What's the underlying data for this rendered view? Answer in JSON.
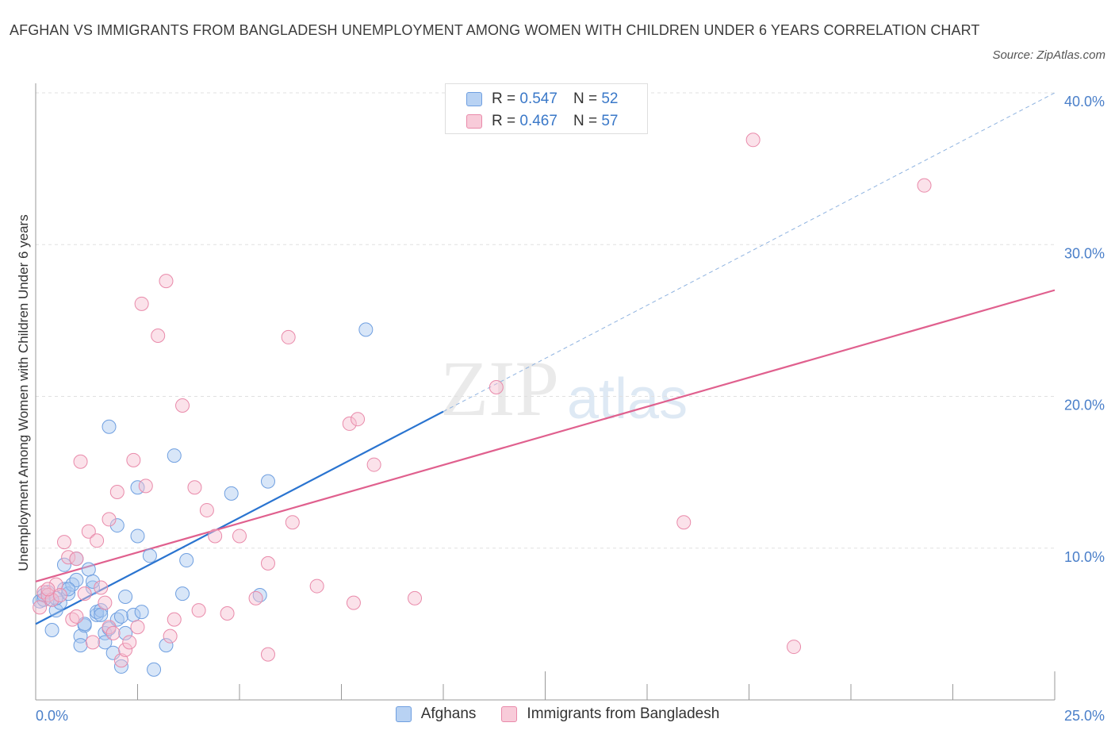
{
  "title": "AFGHAN VS IMMIGRANTS FROM BANGLADESH UNEMPLOYMENT AMONG WOMEN WITH CHILDREN UNDER 6 YEARS CORRELATION CHART",
  "source": "Source: ZipAtlas.com",
  "watermark": {
    "zip": "ZIP",
    "atlas": "atlas"
  },
  "colors": {
    "afghans_fill": "#a9c8f0",
    "afghans_stroke": "#6f9fe0",
    "afghans_line": "#2a74d0",
    "bangladesh_fill": "#f6bfd0",
    "bangladesh_stroke": "#e98aaa",
    "bangladesh_line": "#e0608e",
    "grid": "#e0e0e0",
    "tick_label": "#4a7fc9"
  },
  "legend_top": [
    {
      "r_label": "R = ",
      "r_value": "0.547",
      "n_label": "N = ",
      "n_value": "52"
    },
    {
      "r_label": "R = ",
      "r_value": "0.467",
      "n_label": "N = ",
      "n_value": "57"
    }
  ],
  "chart_data": {
    "type": "scatter",
    "title": "AFGHAN VS IMMIGRANTS FROM BANGLADESH UNEMPLOYMENT AMONG WOMEN WITH CHILDREN UNDER 6 YEARS CORRELATION CHART",
    "xlabel": "",
    "ylabel": "Unemployment Among Women with Children Under 6 years",
    "xlim": [
      0,
      25
    ],
    "ylim": [
      0,
      40
    ],
    "x_tick_labels": [
      "0.0%",
      "25.0%"
    ],
    "y_ticks": [
      10,
      20,
      30,
      40
    ],
    "y_tick_labels": [
      "10.0%",
      "20.0%",
      "30.0%",
      "40.0%"
    ],
    "grid": true,
    "series": [
      {
        "name": "Afghans",
        "r": 0.547,
        "n": 52,
        "trend": {
          "x": [
            0,
            10
          ],
          "y": [
            5.0,
            19.0
          ]
        },
        "trend_extension": {
          "x": [
            10,
            25
          ],
          "y": [
            19.0,
            40.0
          ]
        },
        "points": [
          [
            0.1,
            6.5
          ],
          [
            0.2,
            6.9
          ],
          [
            0.3,
            7.1
          ],
          [
            0.4,
            6.6
          ],
          [
            0.4,
            4.6
          ],
          [
            0.5,
            5.9
          ],
          [
            0.6,
            6.4
          ],
          [
            0.7,
            7.3
          ],
          [
            0.7,
            8.9
          ],
          [
            0.8,
            7.0
          ],
          [
            0.9,
            7.6
          ],
          [
            1.0,
            9.3
          ],
          [
            1.0,
            7.9
          ],
          [
            1.1,
            4.2
          ],
          [
            1.1,
            3.6
          ],
          [
            1.2,
            4.9
          ],
          [
            1.3,
            8.6
          ],
          [
            1.4,
            7.4
          ],
          [
            1.4,
            7.8
          ],
          [
            1.5,
            5.6
          ],
          [
            1.5,
            5.8
          ],
          [
            1.6,
            5.9
          ],
          [
            1.6,
            5.6
          ],
          [
            1.7,
            4.4
          ],
          [
            1.7,
            3.8
          ],
          [
            1.8,
            18.0
          ],
          [
            1.8,
            4.7
          ],
          [
            1.9,
            3.1
          ],
          [
            2.0,
            5.3
          ],
          [
            2.0,
            11.5
          ],
          [
            2.1,
            5.5
          ],
          [
            2.1,
            2.2
          ],
          [
            2.2,
            6.8
          ],
          [
            2.2,
            4.4
          ],
          [
            2.4,
            5.6
          ],
          [
            2.5,
            10.8
          ],
          [
            2.5,
            14.0
          ],
          [
            2.6,
            5.8
          ],
          [
            2.8,
            9.5
          ],
          [
            2.9,
            2.0
          ],
          [
            3.2,
            3.6
          ],
          [
            3.4,
            16.1
          ],
          [
            3.6,
            7.0
          ],
          [
            3.7,
            9.2
          ],
          [
            4.8,
            13.6
          ],
          [
            5.5,
            6.9
          ],
          [
            5.7,
            14.4
          ],
          [
            8.1,
            24.4
          ],
          [
            0.2,
            6.6
          ],
          [
            0.5,
            6.7
          ],
          [
            1.2,
            5.0
          ],
          [
            0.8,
            7.3
          ]
        ]
      },
      {
        "name": "Immigrants from Bangladesh",
        "r": 0.467,
        "n": 57,
        "trend": {
          "x": [
            0,
            25
          ],
          "y": [
            7.8,
            27.0
          ]
        },
        "points": [
          [
            0.1,
            6.1
          ],
          [
            0.2,
            7.1
          ],
          [
            0.3,
            6.9
          ],
          [
            0.4,
            6.6
          ],
          [
            0.5,
            7.6
          ],
          [
            0.6,
            6.9
          ],
          [
            0.7,
            10.4
          ],
          [
            0.8,
            9.4
          ],
          [
            0.9,
            5.3
          ],
          [
            1.0,
            9.3
          ],
          [
            1.1,
            15.7
          ],
          [
            1.2,
            7.0
          ],
          [
            1.3,
            11.1
          ],
          [
            1.4,
            3.8
          ],
          [
            1.5,
            10.5
          ],
          [
            1.6,
            7.4
          ],
          [
            1.7,
            6.4
          ],
          [
            1.8,
            4.8
          ],
          [
            1.8,
            11.9
          ],
          [
            1.9,
            4.4
          ],
          [
            2.0,
            13.7
          ],
          [
            2.1,
            2.6
          ],
          [
            2.2,
            3.3
          ],
          [
            2.3,
            3.8
          ],
          [
            2.4,
            15.8
          ],
          [
            2.5,
            4.8
          ],
          [
            2.6,
            26.1
          ],
          [
            2.7,
            14.1
          ],
          [
            3.0,
            24.0
          ],
          [
            3.2,
            27.6
          ],
          [
            3.3,
            4.2
          ],
          [
            3.4,
            5.3
          ],
          [
            3.6,
            19.4
          ],
          [
            3.9,
            14.0
          ],
          [
            4.0,
            5.9
          ],
          [
            4.2,
            12.5
          ],
          [
            4.4,
            10.8
          ],
          [
            4.7,
            5.7
          ],
          [
            5.0,
            10.8
          ],
          [
            5.4,
            6.7
          ],
          [
            5.7,
            9.0
          ],
          [
            5.7,
            3.0
          ],
          [
            6.2,
            23.9
          ],
          [
            6.3,
            11.7
          ],
          [
            6.9,
            7.5
          ],
          [
            7.7,
            18.2
          ],
          [
            7.8,
            6.4
          ],
          [
            7.9,
            18.5
          ],
          [
            8.3,
            15.5
          ],
          [
            9.3,
            6.7
          ],
          [
            11.3,
            20.6
          ],
          [
            15.9,
            11.7
          ],
          [
            17.6,
            36.9
          ],
          [
            18.6,
            3.5
          ],
          [
            21.8,
            33.9
          ],
          [
            0.3,
            7.3
          ],
          [
            1.0,
            5.5
          ]
        ]
      }
    ]
  },
  "legend_bottom": [
    "Afghans",
    "Immigrants from Bangladesh"
  ]
}
